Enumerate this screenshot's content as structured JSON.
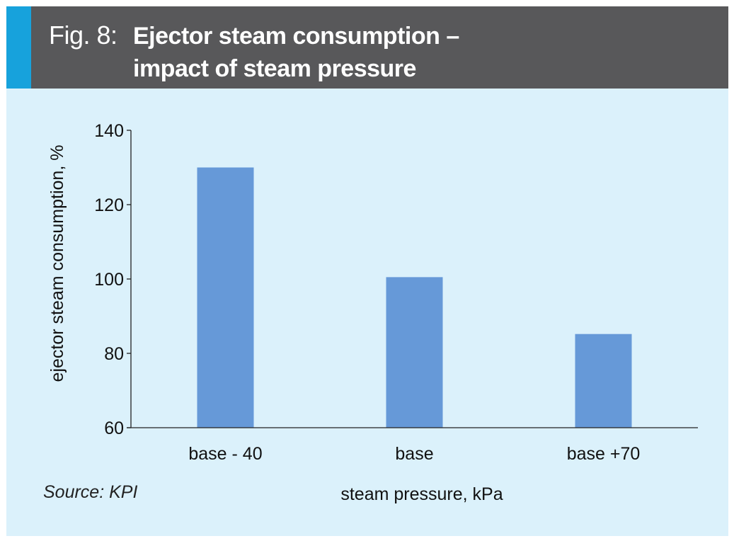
{
  "header": {
    "figure_label": "Fig. 8:",
    "title_line1": "Ejector steam consumption –",
    "title_line2": "impact of steam pressure",
    "accent_color": "#17a2dc",
    "background_color": "#58585a"
  },
  "source": "Source: KPI",
  "panel_color": "#dbf1fb",
  "chart_data": {
    "type": "bar",
    "categories": [
      "base - 40",
      "base",
      "base +70"
    ],
    "values": [
      130,
      100.5,
      85.2
    ],
    "xlabel": "steam pressure, kPa",
    "ylabel": "ejector steam consumption, %",
    "ylim": [
      60,
      140
    ],
    "yticks": [
      60,
      80,
      100,
      120,
      140
    ],
    "bar_color": "#6699d8",
    "grid": false,
    "legend": "none"
  }
}
